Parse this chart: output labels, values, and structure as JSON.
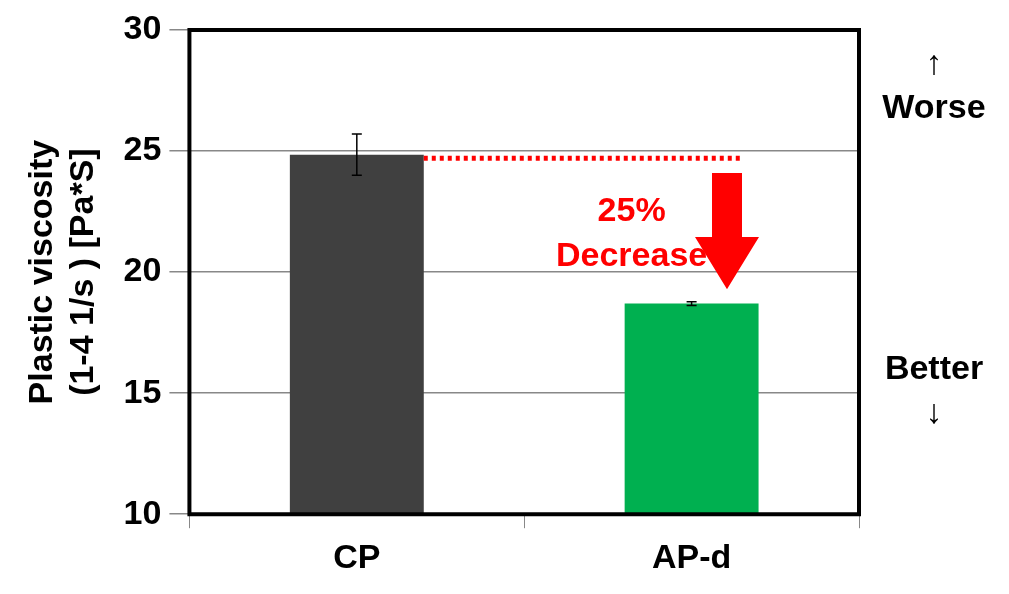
{
  "chart_data": {
    "type": "bar",
    "ylabel": "Plastic viscosity\n(1-4 1/s ) [Pa*S]",
    "categories": [
      "CP",
      "AP-d"
    ],
    "values": [
      24.85,
      18.7
    ],
    "colors": [
      "#404040",
      "#00b050"
    ],
    "errors": [
      0.85,
      0.08
    ],
    "ylim": [
      10,
      30
    ],
    "yticks": [
      10,
      15,
      20,
      25,
      30
    ],
    "grid": "y",
    "legend": false,
    "ref_lines": [
      {
        "axis": "y",
        "value": 24.7,
        "color": "#ff0000",
        "line_style": "dotted"
      }
    ],
    "annotations": [
      "25%\nDecrease",
      "↑\nWorse",
      "Better\n↓"
    ]
  }
}
